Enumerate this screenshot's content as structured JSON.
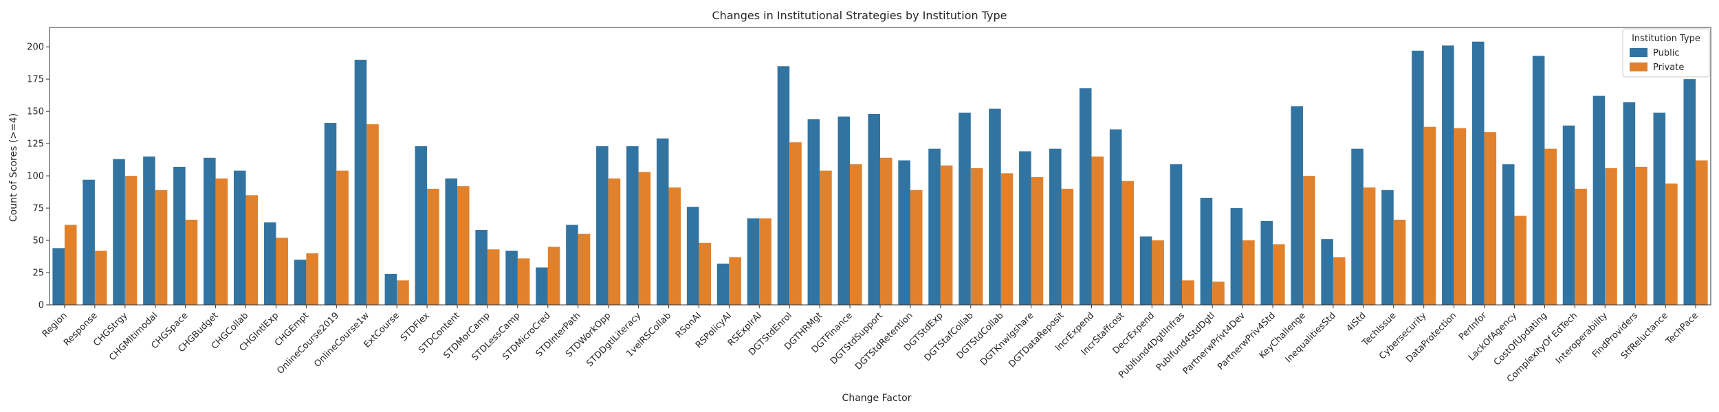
{
  "chart_data": {
    "type": "bar",
    "title": "Changes in Institutional Strategies by Institution Type",
    "xlabel": "Change Factor",
    "ylabel": "Count of Scores (>=4)",
    "ylim": [
      0,
      215
    ],
    "yticks": [
      0,
      25,
      50,
      75,
      100,
      125,
      150,
      175,
      200
    ],
    "grid": false,
    "legend": {
      "title": "Institution Type",
      "placement": "top-right"
    },
    "categories": [
      "Region",
      "Response",
      "CHGStrgy",
      "CHGMltimodal",
      "CHGSpace",
      "CHGBudget",
      "CHGCollab",
      "CHGIntlExp",
      "CHGEmpt",
      "OnlineCourse2019",
      "OnlineCourse1w",
      "ExtCourse",
      "STDFlex",
      "STDContent",
      "STDMorCamp",
      "STDLessCamp",
      "STDMicroCred",
      "STDInterPath",
      "STDWorkOpp",
      "STDDgtlLiteracy",
      "1velRSCollab",
      "RSonAI",
      "RSPolicyAI",
      "RSExplrAI",
      "DGTStdEnrol",
      "DGTHRMgt",
      "DGTFinance",
      "DGTStdSupport",
      "DGTStdRetention",
      "DGTStdExp",
      "DGTStafCollab",
      "DGTStdCollab",
      "DGTKnwlgshare",
      "DGTDataReposit",
      "IncrExpend",
      "IncrStaffcost",
      "DecrExpend",
      "Publfund4DgtlInfras",
      "Publfund4StdDgtl",
      "PartnerwPrivt4Dev",
      "PartnerwPriv4Std",
      "KeyChallenge",
      "InequalitiesStd",
      "4iStd",
      "TechIssue",
      "Cybersecurity",
      "DataProtection",
      "PerInfor",
      "LackOfAgency",
      "CostOfUpdating",
      "ComplexityOf EdTech",
      "Interoperability",
      "FindProviders",
      "StfReluctance",
      "TechPace"
    ],
    "series": [
      {
        "name": "Public",
        "color": "#3274a1",
        "values": [
          44,
          97,
          113,
          115,
          107,
          114,
          104,
          64,
          35,
          141,
          190,
          24,
          123,
          98,
          58,
          42,
          29,
          62,
          123,
          123,
          129,
          76,
          32,
          67,
          185,
          144,
          146,
          148,
          112,
          121,
          149,
          152,
          119,
          121,
          168,
          136,
          53,
          109,
          83,
          75,
          65,
          154,
          51,
          121,
          89,
          197,
          201,
          204,
          109,
          193,
          139,
          162,
          157,
          149,
          175
        ]
      },
      {
        "name": "Private",
        "color": "#e1812c",
        "values": [
          62,
          42,
          100,
          89,
          66,
          98,
          85,
          52,
          40,
          104,
          140,
          19,
          90,
          92,
          43,
          36,
          45,
          55,
          98,
          103,
          91,
          48,
          37,
          67,
          126,
          104,
          109,
          114,
          89,
          108,
          106,
          102,
          99,
          90,
          115,
          96,
          50,
          19,
          18,
          50,
          47,
          100,
          37,
          91,
          66,
          138,
          137,
          134,
          69,
          121,
          90,
          106,
          107,
          94,
          112
        ]
      }
    ]
  }
}
